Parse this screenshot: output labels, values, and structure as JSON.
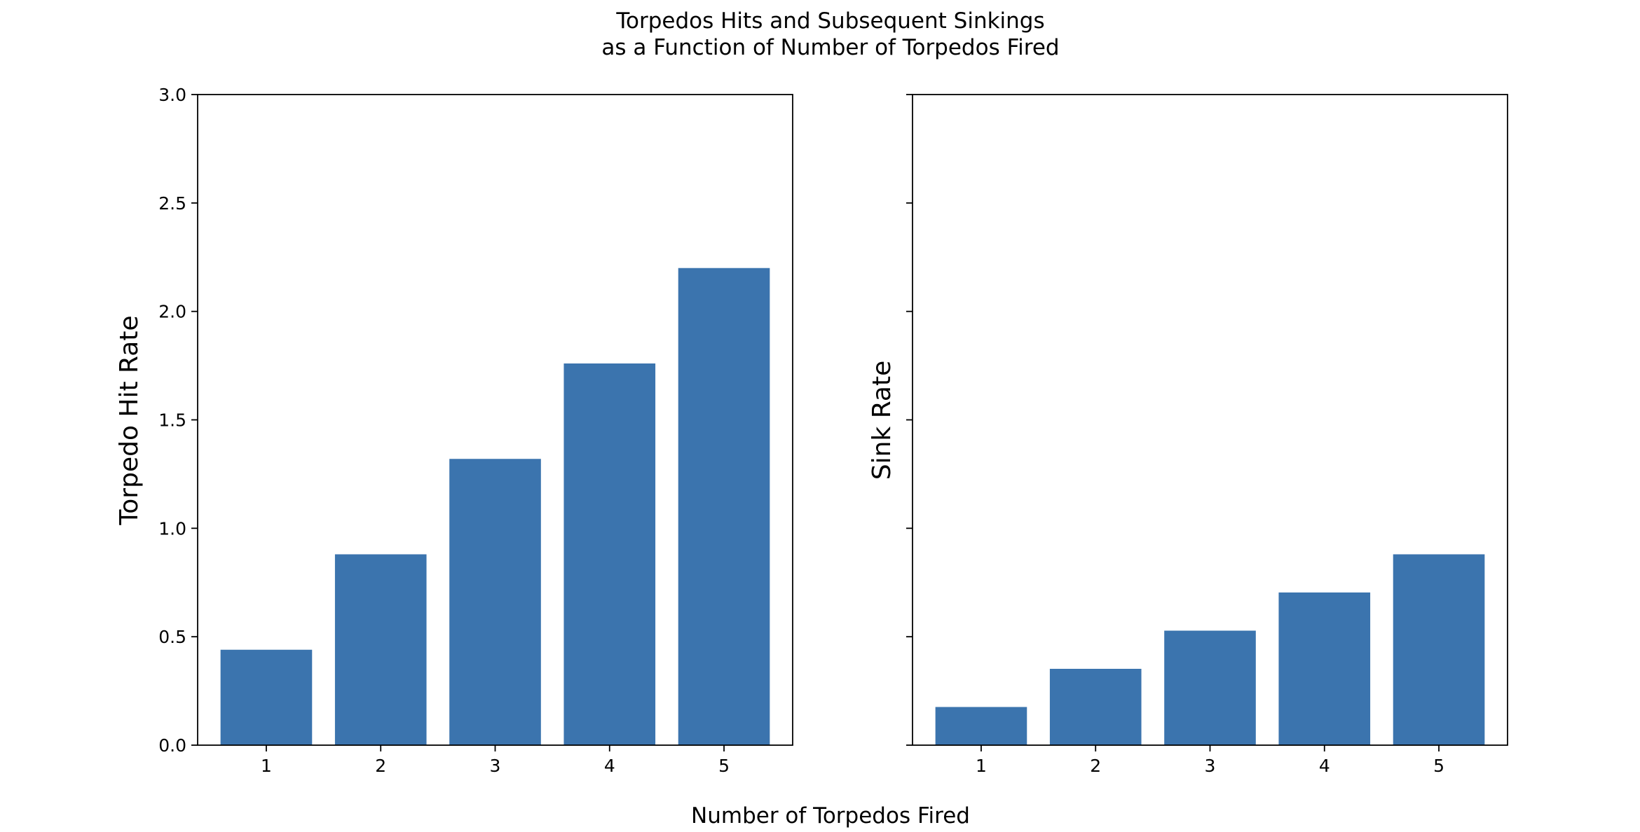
{
  "chart_data": {
    "type": "bar",
    "title_line1": "Torpedos Hits and Subsequent Sinkings",
    "title_line2": "as a Function of Number of Torpedos Fired",
    "xlabel": "Number of Torpedos Fired",
    "bar_color": "#3b74ae",
    "shared_y": true,
    "ylim": [
      0,
      3.0
    ],
    "yticks": [
      "0.0",
      "0.5",
      "1.0",
      "1.5",
      "2.0",
      "2.5",
      "3.0"
    ],
    "panels": [
      {
        "ylabel": "Torpedo Hit Rate",
        "categories": [
          "1",
          "2",
          "3",
          "4",
          "5"
        ],
        "values": [
          0.44,
          0.88,
          1.32,
          1.76,
          2.2
        ],
        "show_ytick_labels": true
      },
      {
        "ylabel": "Sink Rate",
        "categories": [
          "1",
          "2",
          "3",
          "4",
          "5"
        ],
        "values": [
          0.176,
          0.352,
          0.528,
          0.704,
          0.88
        ],
        "show_ytick_labels": false
      }
    ]
  }
}
